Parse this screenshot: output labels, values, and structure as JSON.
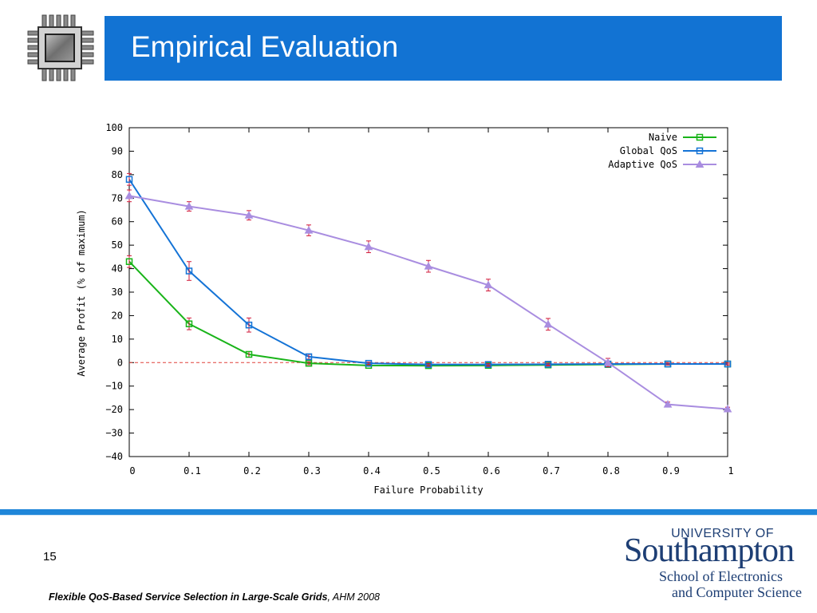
{
  "slide": {
    "title": "Empirical Evaluation",
    "number": "15",
    "citation": {
      "title": "Flexible QoS-Based Service Selection in Large-Scale Grids",
      "rest": ", AHM 2008"
    },
    "header_color": "#1273d3",
    "footer_color": "#1f86d9"
  },
  "university": {
    "of_label": "UNIVERSITY OF",
    "name": "Southampton",
    "school_line1": "School of Electronics",
    "school_line2": "and Computer Science",
    "brand_color": "#1d3e74"
  },
  "chart_data": {
    "type": "line",
    "xlabel": "Failure Probability",
    "ylabel": "Average Profit (% of maximum)",
    "xlim": [
      0,
      1
    ],
    "ylim": [
      -40,
      100
    ],
    "xticks": [
      0,
      0.1,
      0.2,
      0.3,
      0.4,
      0.5,
      0.6,
      0.7,
      0.8,
      0.9,
      1
    ],
    "xtick_labels": [
      "0",
      "0.1",
      "0.2",
      "0.3",
      "0.4",
      "0.5",
      "0.6",
      "0.7",
      "0.8",
      "0.9",
      "1"
    ],
    "yticks": [
      -40,
      -30,
      -20,
      -10,
      0,
      10,
      20,
      30,
      40,
      50,
      60,
      70,
      80,
      90,
      100
    ],
    "ytick_labels": [
      "−40",
      "−30",
      "−20",
      "−10",
      "0",
      "10",
      "20",
      "30",
      "40",
      "50",
      "60",
      "70",
      "80",
      "90",
      "100"
    ],
    "legend_position": "top-right",
    "zero_line": {
      "value": 0,
      "color": "#e0413a",
      "style": "dashed"
    },
    "error_bar_color": "#d11a3a",
    "series": [
      {
        "name": "Naive",
        "color": "#19b419",
        "marker": "square",
        "x": [
          0,
          0.1,
          0.2,
          0.3,
          0.4,
          0.5,
          0.6,
          0.7,
          0.8,
          0.9,
          1
        ],
        "y": [
          43,
          16.5,
          3.5,
          -0.3,
          -1.2,
          -1.3,
          -1.2,
          -1.0,
          -0.8,
          -0.6,
          -0.6
        ],
        "err": [
          2.5,
          2.5,
          1.2,
          0.6,
          0.4,
          0.4,
          0.4,
          0.4,
          0.4,
          0.4,
          0.4
        ]
      },
      {
        "name": "Global QoS",
        "color": "#1473d6",
        "marker": "square",
        "x": [
          0,
          0.1,
          0.2,
          0.3,
          0.4,
          0.5,
          0.6,
          0.7,
          0.8,
          0.9,
          1
        ],
        "y": [
          78,
          39,
          16,
          2.5,
          -0.3,
          -0.8,
          -0.8,
          -0.7,
          -0.6,
          -0.6,
          -0.6
        ],
        "err": [
          2.5,
          4,
          3,
          1,
          0.5,
          0.4,
          0.4,
          0.4,
          0.4,
          0.4,
          0.4
        ]
      },
      {
        "name": "Adaptive QoS",
        "color": "#a98de0",
        "marker": "triangle",
        "x": [
          0,
          0.1,
          0.2,
          0.3,
          0.4,
          0.5,
          0.6,
          0.7,
          0.8,
          0.9,
          1
        ],
        "y": [
          71,
          66.5,
          62.7,
          56.3,
          49.3,
          41,
          33,
          16.3,
          0,
          -17.8,
          -19.8
        ],
        "err": [
          2.5,
          2,
          2,
          2.3,
          2.5,
          2.5,
          2.5,
          2.5,
          1.8,
          1,
          0.8
        ]
      }
    ]
  }
}
